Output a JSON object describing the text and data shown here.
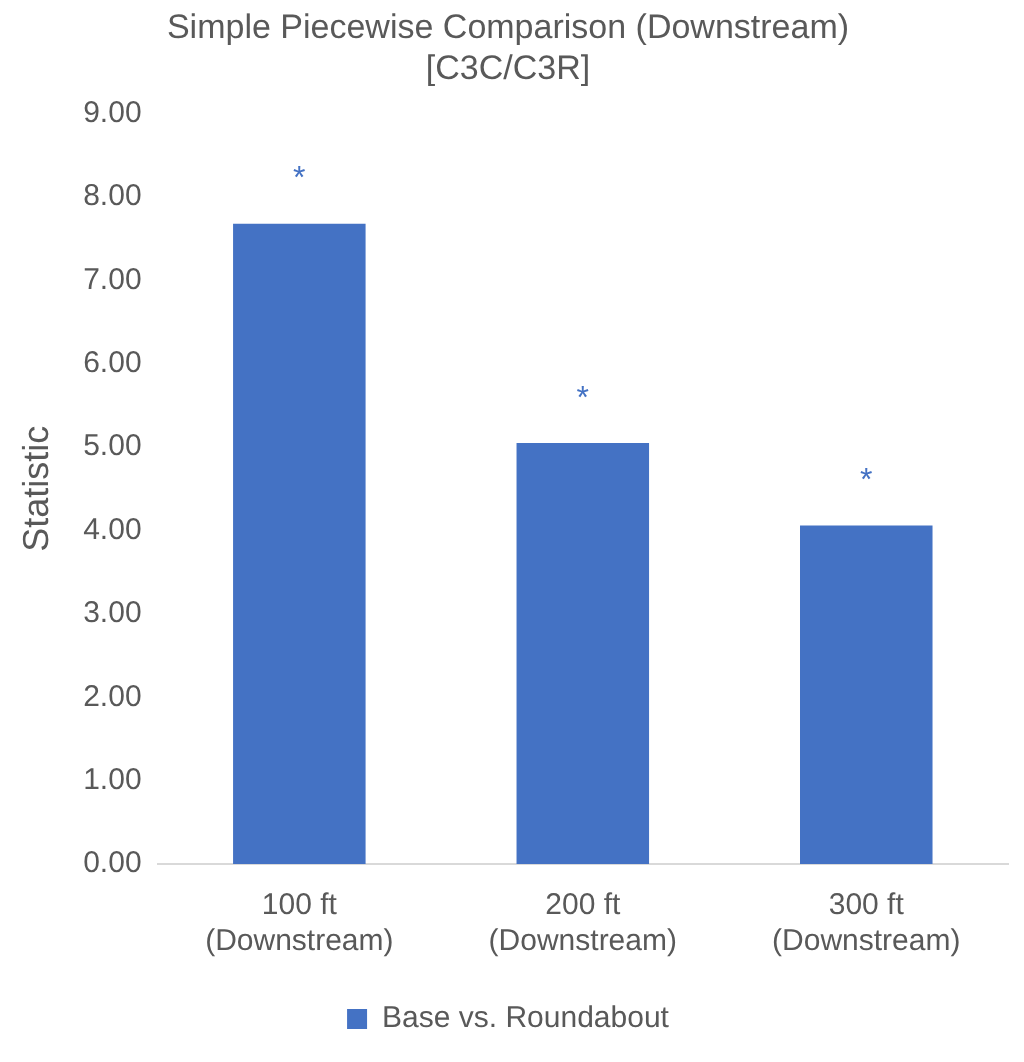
{
  "chart_data": {
    "type": "bar",
    "title": "Simple Piecewise Comparison (Downstream) [C3C/C3R]",
    "ylabel": "Statistic",
    "categories": [
      "100 ft (Downstream)",
      "200 ft (Downstream)",
      "300 ft (Downstream)"
    ],
    "series": [
      {
        "name": "Base vs. Roundabout",
        "color": "#4472c4",
        "values": [
          7.68,
          5.05,
          4.06
        ]
      }
    ],
    "ylim": [
      0,
      9
    ],
    "yticks": [
      {
        "value": 0,
        "label": "0.00"
      },
      {
        "value": 1,
        "label": "1.00"
      },
      {
        "value": 2,
        "label": "2.00"
      },
      {
        "value": 3,
        "label": "3.00"
      },
      {
        "value": 4,
        "label": "4.00"
      },
      {
        "value": 5,
        "label": "5.00"
      },
      {
        "value": 6,
        "label": "6.00"
      },
      {
        "value": 7,
        "label": "7.00"
      },
      {
        "value": 8,
        "label": "8.00"
      },
      {
        "value": 9,
        "label": "9.00"
      }
    ],
    "annotations": [
      "*",
      "*",
      "*"
    ],
    "grid": false,
    "legend": "bottom"
  }
}
